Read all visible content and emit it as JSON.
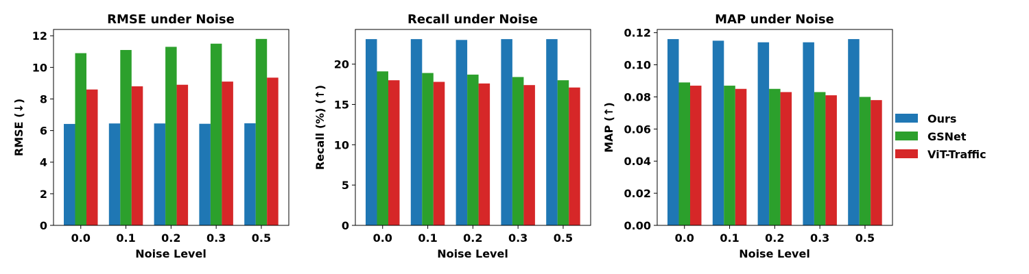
{
  "legend": {
    "placement": "right",
    "entries": [
      {
        "name": "Ours",
        "color": "#1f77b4"
      },
      {
        "name": "GSNet",
        "color": "#2ca02c"
      },
      {
        "name": "ViT-Traffic",
        "color": "#d62728"
      }
    ]
  },
  "chart_data": [
    {
      "type": "bar",
      "title": "RMSE under Noise",
      "xlabel": "Noise Level",
      "ylabel": "RMSE (↓)",
      "categories": [
        "0.0",
        "0.1",
        "0.2",
        "0.3",
        "0.5"
      ],
      "ylim": [
        0,
        12.4
      ],
      "yticks": [
        0,
        2,
        4,
        6,
        8,
        10,
        12
      ],
      "ytick_labels": [
        "0",
        "2",
        "4",
        "6",
        "8",
        "10",
        "12"
      ],
      "grid": false,
      "series": [
        {
          "name": "Ours",
          "color": "#1f77b4",
          "values": [
            6.42,
            6.45,
            6.45,
            6.43,
            6.46
          ]
        },
        {
          "name": "GSNet",
          "color": "#2ca02c",
          "values": [
            10.9,
            11.1,
            11.3,
            11.5,
            11.8
          ]
        },
        {
          "name": "ViT-Traffic",
          "color": "#d62728",
          "values": [
            8.6,
            8.8,
            8.9,
            9.1,
            9.35
          ]
        }
      ]
    },
    {
      "type": "bar",
      "title": "Recall under Noise",
      "xlabel": "Noise Level",
      "ylabel": "Recall (%) (↑)",
      "categories": [
        "0.0",
        "0.1",
        "0.2",
        "0.3",
        "0.5"
      ],
      "ylim": [
        0,
        24.3
      ],
      "yticks": [
        0,
        5,
        10,
        15,
        20
      ],
      "ytick_labels": [
        "0",
        "5",
        "10",
        "15",
        "20"
      ],
      "grid": false,
      "series": [
        {
          "name": "Ours",
          "color": "#1f77b4",
          "values": [
            23.1,
            23.1,
            23.0,
            23.1,
            23.1
          ]
        },
        {
          "name": "GSNet",
          "color": "#2ca02c",
          "values": [
            19.1,
            18.9,
            18.7,
            18.4,
            18.0
          ]
        },
        {
          "name": "ViT-Traffic",
          "color": "#d62728",
          "values": [
            18.0,
            17.8,
            17.6,
            17.4,
            17.1
          ]
        }
      ]
    },
    {
      "type": "bar",
      "title": "MAP under Noise",
      "xlabel": "Noise Level",
      "ylabel": "MAP (↑)",
      "categories": [
        "0.0",
        "0.1",
        "0.2",
        "0.3",
        "0.5"
      ],
      "ylim": [
        0,
        0.122
      ],
      "yticks": [
        0,
        0.02,
        0.04,
        0.06,
        0.08,
        0.1,
        0.12
      ],
      "ytick_labels": [
        "0.00",
        "0.02",
        "0.04",
        "0.06",
        "0.08",
        "0.10",
        "0.12"
      ],
      "grid": false,
      "series": [
        {
          "name": "Ours",
          "color": "#1f77b4",
          "values": [
            0.116,
            0.115,
            0.114,
            0.114,
            0.116
          ]
        },
        {
          "name": "GSNet",
          "color": "#2ca02c",
          "values": [
            0.089,
            0.087,
            0.085,
            0.083,
            0.08
          ]
        },
        {
          "name": "ViT-Traffic",
          "color": "#d62728",
          "values": [
            0.087,
            0.085,
            0.083,
            0.081,
            0.078
          ]
        }
      ]
    }
  ]
}
